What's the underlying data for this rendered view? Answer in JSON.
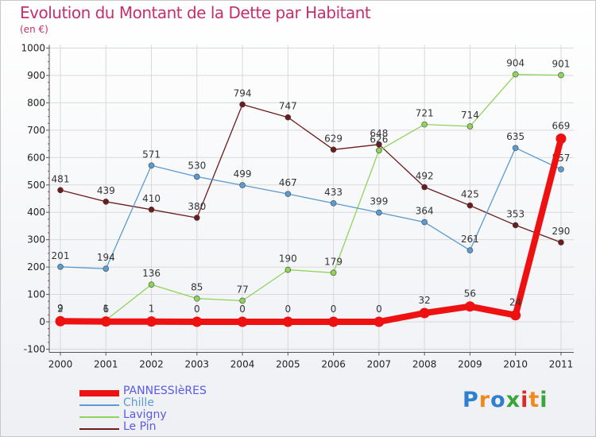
{
  "title": "Evolution du Montant de la Dette par Habitant",
  "subtitle": "(en €)",
  "logo": {
    "text": "Proxiti",
    "colors": [
      "#2d7fd0",
      "#f08a1c",
      "#2d7fd0",
      "#3aa53a",
      "#d62b2b",
      "#f08a1c",
      "#3aa53a"
    ]
  },
  "colors": {
    "title": "#c2306e",
    "axis": "#555555",
    "grid": "#d9d9d9",
    "tick_text": "#222222"
  },
  "chart_data": {
    "type": "line",
    "title": "Evolution du Montant de la Dette par Habitant",
    "ylabel": "(en €)",
    "x": [
      "2000",
      "2001",
      "2002",
      "2003",
      "2004",
      "2005",
      "2006",
      "2007",
      "2008",
      "2009",
      "2010",
      "2011"
    ],
    "ylim": [
      -100,
      1000
    ],
    "yticks": [
      -100,
      0,
      100,
      200,
      300,
      400,
      500,
      600,
      700,
      800,
      900,
      1000
    ],
    "grid": true,
    "legend": "bottom-left",
    "series": [
      {
        "name": "Le Pin",
        "color": "#6b1c1c",
        "width": 1.3,
        "marker": 3.5,
        "values": [
          481,
          439,
          410,
          380,
          794,
          747,
          629,
          648,
          492,
          425,
          353,
          290
        ],
        "labels": [
          "481",
          "439",
          "410",
          "380",
          "794",
          "747",
          "629",
          "648",
          "492",
          "425",
          "353",
          "290"
        ]
      },
      {
        "name": "Lavigny",
        "color": "#8fd35a",
        "width": 1.3,
        "marker": 3.5,
        "values": [
          9,
          6,
          136,
          85,
          77,
          190,
          179,
          626,
          721,
          714,
          904,
          901
        ],
        "labels": [
          "9",
          "6",
          "136",
          "85",
          "77",
          "190",
          "179",
          "626",
          "721",
          "714",
          "904",
          "901"
        ]
      },
      {
        "name": "Chille",
        "color": "#5b9bd0",
        "width": 1.3,
        "marker": 3.5,
        "values": [
          201,
          194,
          571,
          530,
          499,
          467,
          433,
          399,
          364,
          261,
          635,
          557
        ],
        "labels": [
          "201",
          "194",
          "571",
          "530",
          "499",
          "467",
          "433",
          "399",
          "364",
          "261",
          "635",
          "557"
        ]
      },
      {
        "name": "PANNESSIèRES",
        "color": "#ee1111",
        "width": 8,
        "marker": 6.5,
        "values": [
          2,
          1,
          1,
          0,
          0,
          0,
          0,
          0,
          32,
          56,
          24,
          669
        ],
        "labels": [
          "2",
          "1",
          "1",
          "0",
          "0",
          "0",
          "0",
          "0",
          "32",
          "56",
          "24",
          "669"
        ]
      }
    ],
    "legend_entries": [
      {
        "name": "PANNESSIèRES",
        "color": "#ee1111",
        "text_color": "#5a5ae6",
        "thickness": 8
      },
      {
        "name": "Chille",
        "color": "#5b9bd0",
        "text_color": "#5b9bd0",
        "thickness": 2
      },
      {
        "name": "Lavigny",
        "color": "#8fd35a",
        "text_color": "#5a5ae6",
        "thickness": 2
      },
      {
        "name": "Le Pin",
        "color": "#6b1c1c",
        "text_color": "#5a5ae6",
        "thickness": 2
      }
    ]
  }
}
